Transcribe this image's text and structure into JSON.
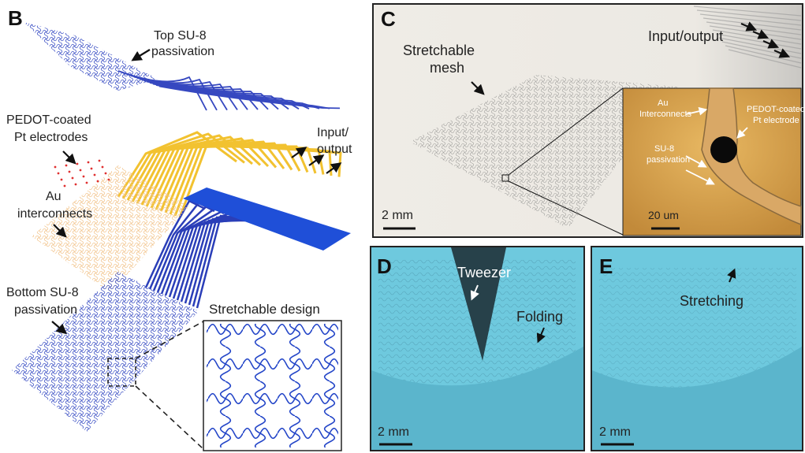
{
  "panel_b": {
    "letter": "B",
    "top_su8": [
      "Top SU-8",
      "passivation"
    ],
    "pedot": [
      "PEDOT-coated",
      "Pt electrodes"
    ],
    "io": [
      "Input/",
      "output"
    ],
    "au": [
      "Au",
      "interconnects"
    ],
    "bottom_su8": [
      "Bottom SU-8",
      "passivation"
    ],
    "design": "Stretchable design"
  },
  "panel_c": {
    "letter": "C",
    "mesh": [
      "Stretchable",
      "mesh"
    ],
    "io": "Input/output",
    "au": [
      "Au",
      "Interconnects"
    ],
    "pedot": [
      "PEDOT-coated",
      "Pt electrode"
    ],
    "su8": [
      "SU-8",
      "passivation"
    ],
    "scale": "2 mm",
    "inset_scale": "20 um"
  },
  "panel_d": {
    "letter": "D",
    "tweezer": "Tweezer",
    "folding": "Folding",
    "scale": "2 mm"
  },
  "panel_e": {
    "letter": "E",
    "stretching": "Stretching",
    "scale": "2 mm"
  }
}
